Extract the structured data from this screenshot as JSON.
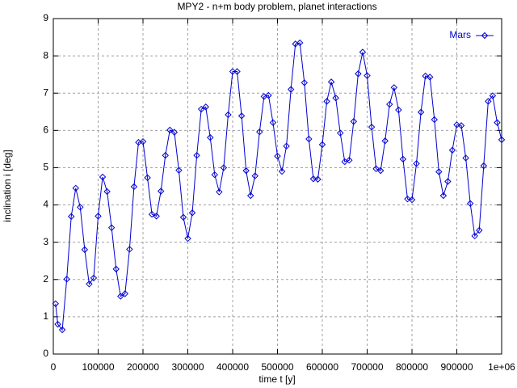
{
  "chart_data": {
    "type": "line",
    "title": "MPY2 - n+m body problem, planet interactions",
    "x_label": "time t [y]",
    "y_label": "inclination i [deg]",
    "xlim": [
      0,
      1000000
    ],
    "ylim": [
      0,
      9
    ],
    "xticks": [
      0,
      100000,
      200000,
      300000,
      400000,
      500000,
      600000,
      700000,
      800000,
      900000,
      {
        "value": 1000000,
        "label": "1e+06"
      }
    ],
    "yticks": [
      0,
      1,
      2,
      3,
      4,
      5,
      6,
      7,
      8,
      9
    ],
    "grid": true,
    "legend": "top-right",
    "x": [
      5000,
      10000,
      20000,
      30000,
      40000,
      50000,
      60000,
      70000,
      80000,
      90000,
      100000,
      110000,
      120000,
      130000,
      140000,
      150000,
      160000,
      170000,
      180000,
      190000,
      200000,
      210000,
      220000,
      230000,
      240000,
      250000,
      260000,
      270000,
      280000,
      290000,
      300000,
      310000,
      320000,
      330000,
      340000,
      350000,
      360000,
      370000,
      380000,
      390000,
      400000,
      410000,
      420000,
      430000,
      440000,
      450000,
      460000,
      470000,
      480000,
      490000,
      500000,
      510000,
      520000,
      530000,
      540000,
      550000,
      560000,
      570000,
      580000,
      590000,
      600000,
      610000,
      620000,
      630000,
      640000,
      650000,
      660000,
      670000,
      680000,
      690000,
      700000,
      710000,
      720000,
      730000,
      740000,
      750000,
      760000,
      770000,
      780000,
      790000,
      800000,
      810000,
      820000,
      830000,
      840000,
      850000,
      860000,
      870000,
      880000,
      890000,
      900000,
      910000,
      920000,
      930000,
      940000,
      950000,
      960000,
      970000,
      980000,
      990000,
      1000000
    ],
    "series": [
      {
        "name": "Mars",
        "color": "#0000d0",
        "values": [
          1.35,
          0.8,
          0.65,
          2.01,
          3.69,
          4.45,
          3.94,
          2.8,
          1.88,
          2.04,
          3.7,
          4.75,
          4.36,
          3.39,
          2.28,
          1.55,
          1.62,
          2.81,
          4.49,
          5.68,
          5.7,
          4.73,
          3.75,
          3.7,
          4.37,
          5.33,
          6.01,
          5.95,
          4.93,
          3.67,
          3.1,
          3.79,
          5.33,
          6.57,
          6.63,
          5.81,
          4.81,
          4.35,
          5.0,
          6.42,
          7.58,
          7.58,
          6.39,
          4.92,
          4.25,
          4.78,
          5.96,
          6.91,
          6.94,
          6.21,
          5.31,
          4.9,
          5.58,
          7.1,
          8.32,
          8.35,
          7.28,
          5.77,
          4.7,
          4.69,
          5.62,
          6.78,
          7.3,
          6.87,
          5.93,
          5.16,
          5.2,
          6.24,
          7.52,
          8.1,
          7.47,
          6.09,
          4.97,
          4.92,
          5.72,
          6.7,
          7.15,
          6.55,
          5.23,
          4.16,
          4.14,
          5.11,
          6.49,
          7.46,
          7.43,
          6.29,
          4.89,
          4.25,
          4.63,
          5.47,
          6.15,
          6.13,
          5.26,
          4.04,
          3.17,
          3.32,
          5.05,
          6.78,
          6.93,
          6.21,
          5.75
        ]
      }
    ]
  }
}
